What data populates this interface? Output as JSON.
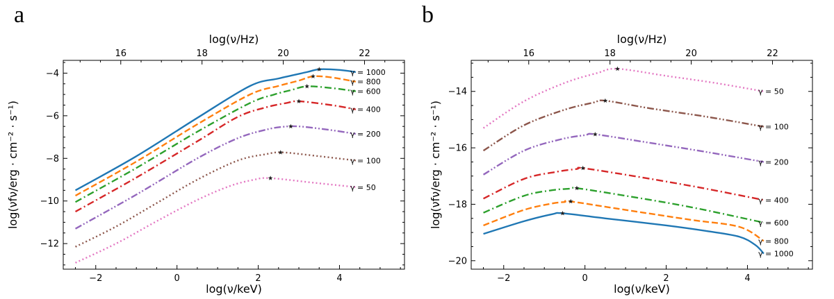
{
  "chart_data": [
    {
      "type": "line",
      "panel_letter": "a",
      "xlabel": "log(ν/keV)",
      "ylabel": "log(νfν/erg · cm⁻² · s⁻¹)",
      "top_xlabel": "log(ν/Hz)",
      "xlim": [
        -2.8,
        5.6
      ],
      "ylim": [
        -13.2,
        -3.4
      ],
      "xticks": [
        -2,
        0,
        2,
        4
      ],
      "xtick_labels": [
        "−2",
        "0",
        "2",
        "4"
      ],
      "yticks": [
        -12,
        -10,
        -8,
        -6,
        -4
      ],
      "ytick_labels": [
        "−12",
        "−10",
        "−8",
        "−6",
        "−4"
      ],
      "top_ticks": [
        16,
        18,
        20,
        22
      ],
      "top_tick_labels": [
        "16",
        "18",
        "20",
        "22"
      ],
      "series": [
        {
          "name": "γ = 1000",
          "color": "#1f77b4",
          "dash": "solid",
          "x": [
            -2.5,
            -1.0,
            0.5,
            1.8,
            2.5,
            3.2,
            3.5,
            4.0,
            4.4
          ],
          "y": [
            -9.5,
            -7.9,
            -6.1,
            -4.6,
            -4.25,
            -3.95,
            -3.82,
            -3.85,
            -3.95
          ],
          "peak": [
            3.5,
            -3.82
          ]
        },
        {
          "name": "γ = 800",
          "color": "#ff7f0e",
          "dash": "dashed",
          "x": [
            -2.5,
            -1.0,
            0.5,
            1.8,
            2.5,
            3.0,
            3.35,
            3.8,
            4.4
          ],
          "y": [
            -9.75,
            -8.15,
            -6.4,
            -5.0,
            -4.6,
            -4.35,
            -4.15,
            -4.2,
            -4.4
          ],
          "peak": [
            3.35,
            -4.15
          ]
        },
        {
          "name": "γ = 600",
          "color": "#2ca02c",
          "dash": "dashdot",
          "x": [
            -2.5,
            -1.0,
            0.5,
            1.8,
            2.4,
            2.8,
            3.2,
            3.8,
            4.4
          ],
          "y": [
            -10.05,
            -8.45,
            -6.75,
            -5.4,
            -5.0,
            -4.8,
            -4.62,
            -4.7,
            -4.85
          ],
          "peak": [
            3.2,
            -4.62
          ]
        },
        {
          "name": "γ = 400",
          "color": "#d62728",
          "dash": "dashdot",
          "x": [
            -2.5,
            -1.0,
            0.5,
            1.5,
            2.2,
            2.7,
            3.0,
            3.8,
            4.4
          ],
          "y": [
            -10.5,
            -8.9,
            -7.2,
            -6.05,
            -5.6,
            -5.4,
            -5.32,
            -5.5,
            -5.7
          ],
          "peak": [
            3.0,
            -5.32
          ]
        },
        {
          "name": "γ = 200",
          "color": "#9467bd",
          "dash": "dashdotdot",
          "x": [
            -2.5,
            -1.0,
            0.5,
            1.5,
            2.2,
            2.6,
            3.0,
            3.7,
            4.4
          ],
          "y": [
            -11.3,
            -9.7,
            -8.0,
            -7.05,
            -6.65,
            -6.52,
            -6.5,
            -6.65,
            -6.85
          ],
          "peak": [
            2.8,
            -6.5
          ]
        },
        {
          "name": "γ = 100",
          "color": "#8c564b",
          "dash": "dotted",
          "x": [
            -2.5,
            -1.5,
            -0.5,
            0.5,
            1.5,
            2.2,
            2.6,
            3.5,
            4.4
          ],
          "y": [
            -12.15,
            -11.2,
            -10.1,
            -9.0,
            -8.1,
            -7.8,
            -7.72,
            -7.9,
            -8.1
          ],
          "peak": [
            2.55,
            -7.72
          ]
        },
        {
          "name": "γ = 50",
          "color": "#e377c2",
          "dash": "dotted",
          "x": [
            -2.5,
            -1.5,
            -0.5,
            0.5,
            1.3,
            1.9,
            2.3,
            3.4,
            4.4
          ],
          "y": [
            -12.9,
            -12.0,
            -10.95,
            -9.95,
            -9.3,
            -9.0,
            -8.93,
            -9.15,
            -9.35
          ],
          "peak": [
            2.3,
            -8.93
          ]
        }
      ]
    },
    {
      "type": "line",
      "panel_letter": "b",
      "xlabel": "log(ν/keV)",
      "ylabel": "log(νfν/erg · cm⁻² · s⁻¹)",
      "top_xlabel": "log(ν/Hz)",
      "xlim": [
        -2.8,
        5.6
      ],
      "ylim": [
        -20.3,
        -12.9
      ],
      "xticks": [
        -2,
        0,
        2,
        4
      ],
      "xtick_labels": [
        "−2",
        "0",
        "2",
        "4"
      ],
      "yticks": [
        -20,
        -18,
        -16,
        -14
      ],
      "ytick_labels": [
        "−20",
        "−18",
        "−16",
        "−14"
      ],
      "top_ticks": [
        16,
        18,
        20,
        22
      ],
      "top_tick_labels": [
        "16",
        "18",
        "20",
        "22"
      ],
      "series": [
        {
          "name": "γ = 50",
          "color": "#e377c2",
          "dash": "dotted",
          "x": [
            -2.5,
            -1.5,
            -0.5,
            0.3,
            0.8,
            2.0,
            3.2,
            4.4
          ],
          "y": [
            -15.3,
            -14.35,
            -13.7,
            -13.35,
            -13.2,
            -13.45,
            -13.7,
            -14.0
          ],
          "peak": [
            0.8,
            -13.2
          ]
        },
        {
          "name": "γ = 100",
          "color": "#8c564b",
          "dash": "dashdotdot",
          "x": [
            -2.5,
            -1.5,
            -0.5,
            0.2,
            0.5,
            1.6,
            3.0,
            4.4
          ],
          "y": [
            -16.1,
            -15.2,
            -14.65,
            -14.4,
            -14.33,
            -14.6,
            -14.9,
            -15.25
          ],
          "peak": [
            0.5,
            -14.33
          ]
        },
        {
          "name": "γ = 200",
          "color": "#9467bd",
          "dash": "dashdotdot",
          "x": [
            -2.5,
            -1.5,
            -0.6,
            0.0,
            0.25,
            1.5,
            3.0,
            4.4
          ],
          "y": [
            -16.95,
            -16.1,
            -15.7,
            -15.55,
            -15.52,
            -15.8,
            -16.15,
            -16.5
          ],
          "peak": [
            0.25,
            -15.52
          ]
        },
        {
          "name": "γ = 400",
          "color": "#d62728",
          "dash": "dashdot",
          "x": [
            -2.5,
            -1.5,
            -0.7,
            -0.2,
            -0.05,
            1.2,
            2.8,
            4.4
          ],
          "y": [
            -17.8,
            -17.1,
            -16.85,
            -16.75,
            -16.72,
            -17.0,
            -17.4,
            -17.85
          ],
          "peak": [
            -0.05,
            -16.72
          ]
        },
        {
          "name": "γ = 600",
          "color": "#2ca02c",
          "dash": "dashdot",
          "x": [
            -2.5,
            -1.5,
            -0.8,
            -0.4,
            -0.2,
            1.0,
            2.6,
            4.4
          ],
          "y": [
            -18.3,
            -17.7,
            -17.5,
            -17.45,
            -17.43,
            -17.7,
            -18.1,
            -18.65
          ],
          "peak": [
            -0.2,
            -17.43
          ]
        },
        {
          "name": "γ = 800",
          "color": "#ff7f0e",
          "dash": "dashed",
          "x": [
            -2.5,
            -1.5,
            -0.8,
            -0.5,
            -0.35,
            1.0,
            2.6,
            3.8,
            4.4
          ],
          "y": [
            -18.75,
            -18.2,
            -17.97,
            -17.92,
            -17.9,
            -18.2,
            -18.55,
            -18.8,
            -19.3
          ],
          "peak": [
            -0.35,
            -17.9
          ]
        },
        {
          "name": "γ = 1000",
          "color": "#1f77b4",
          "dash": "solid",
          "x": [
            -2.5,
            -1.5,
            -0.8,
            -0.55,
            0.5,
            2.0,
            3.0,
            3.8,
            4.2,
            4.4
          ],
          "y": [
            -19.05,
            -18.6,
            -18.35,
            -18.32,
            -18.5,
            -18.75,
            -18.95,
            -19.15,
            -19.45,
            -19.75
          ],
          "peak": [
            -0.55,
            -18.32
          ]
        }
      ]
    }
  ]
}
